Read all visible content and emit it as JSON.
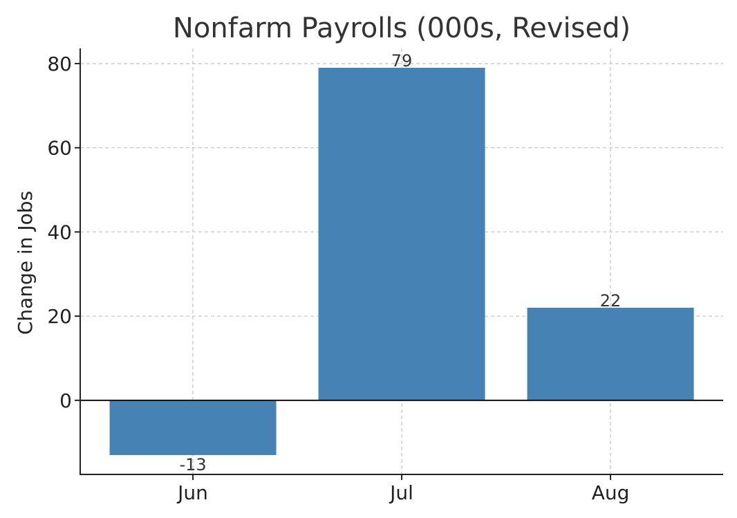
{
  "chart_data": {
    "type": "bar",
    "title": "Nonfarm Payrolls (000s, Revised)",
    "xlabel": "",
    "ylabel": "Change in Jobs",
    "categories": [
      "Jun",
      "Jul",
      "Aug"
    ],
    "values": [
      -13,
      79,
      22
    ],
    "data_labels": [
      "-13",
      "79",
      "22"
    ],
    "ylim": [
      -17.6,
      83.6
    ],
    "yticks": [
      0,
      20,
      40,
      60,
      80
    ],
    "ytick_labels": [
      "0",
      "20",
      "40",
      "60",
      "80"
    ],
    "grid": true,
    "bar_color": "#4682b4",
    "zero_line": true
  }
}
